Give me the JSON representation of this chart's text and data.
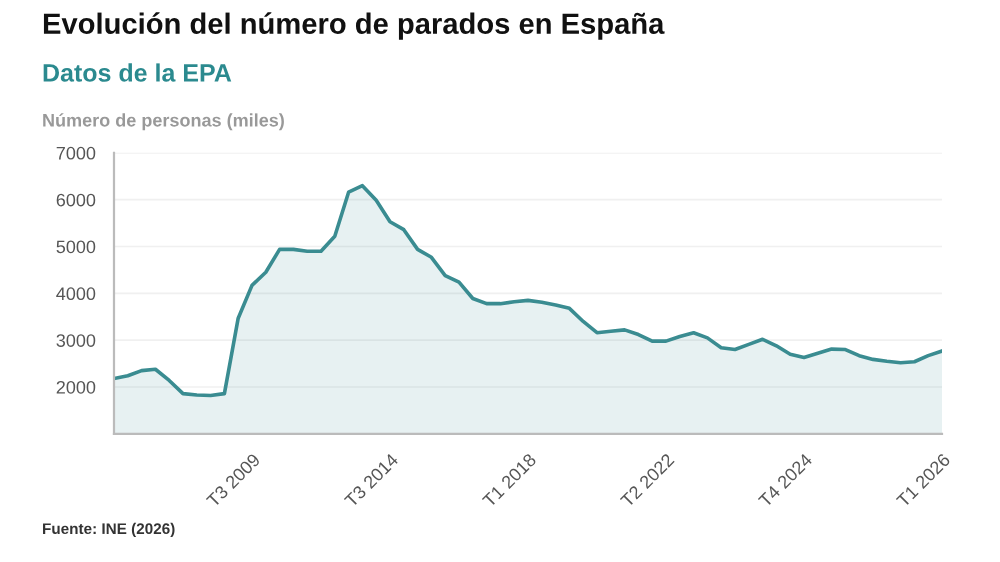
{
  "chart_data": {
    "type": "area",
    "title": "Evolución del número de parados en España",
    "subtitle": "Datos de la EPA",
    "ylabel": "Número de personas (miles)",
    "annotations": [
      "Fuente: INE (2026)"
    ],
    "categories": [
      null,
      null,
      null,
      null,
      null,
      null,
      null,
      null,
      null,
      null,
      "T3 2009",
      null,
      null,
      null,
      null,
      null,
      null,
      null,
      null,
      null,
      "T3 2014",
      null,
      null,
      null,
      null,
      null,
      null,
      null,
      null,
      null,
      "T1 2018",
      null,
      null,
      null,
      null,
      null,
      null,
      null,
      null,
      null,
      "T2 2022",
      null,
      null,
      null,
      null,
      null,
      null,
      null,
      null,
      null,
      "T4 2024",
      null,
      null,
      null,
      null,
      null,
      null,
      null,
      null,
      null,
      "T1 2026"
    ],
    "series": [
      {
        "color": "#3a8c91",
        "values": [
          2180,
          2240,
          2350,
          2380,
          2140,
          1860,
          1830,
          1820,
          1860,
          3470,
          4170,
          4450,
          4940,
          4940,
          4900,
          4900,
          5220,
          6160,
          6300,
          5990,
          5530,
          5360,
          4940,
          4770,
          4380,
          4240,
          3890,
          3780,
          3780,
          3820,
          3850,
          3810,
          3750,
          3680,
          3400,
          3160,
          3190,
          3220,
          3120,
          2980,
          2980,
          3080,
          3160,
          3050,
          2840,
          2800,
          2910,
          3020,
          2880,
          2700,
          2630,
          2720,
          2810,
          2800,
          2670,
          2590,
          2550,
          2520,
          2540,
          2670,
          2770
        ]
      }
    ],
    "ylim": [
      1000,
      7000
    ],
    "yticks": [
      2000,
      3000,
      4000,
      5000,
      6000,
      7000
    ],
    "grid": "y",
    "legend": false,
    "marker": "none",
    "line_style": "solid"
  }
}
